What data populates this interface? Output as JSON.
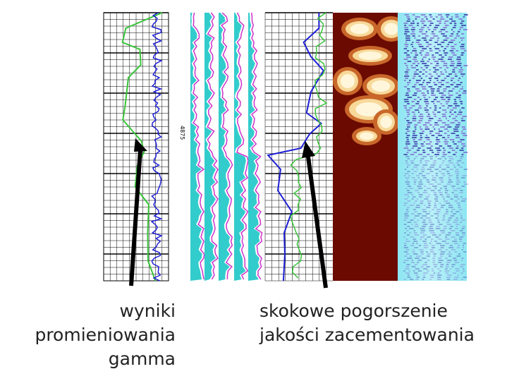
{
  "depth_label": "4875",
  "annotations": {
    "left": [
      "wyniki",
      "promieniowania",
      "gamma"
    ],
    "right": [
      "skokowe pogorszenie",
      "jakości zacementowania"
    ]
  },
  "colors": {
    "gamma_curve": "#39c43a",
    "amplitude_curve": "#1f1fd6",
    "envelope_curve": "#cc33cc",
    "fill": "#33cccc",
    "image_dark": "#6b0a00",
    "image_light": "#fff0c8",
    "vdl_light": "#a9ecf4",
    "vdl_dark": "#3a3aa8",
    "arrow": "#000000",
    "grid": "#000000"
  }
}
